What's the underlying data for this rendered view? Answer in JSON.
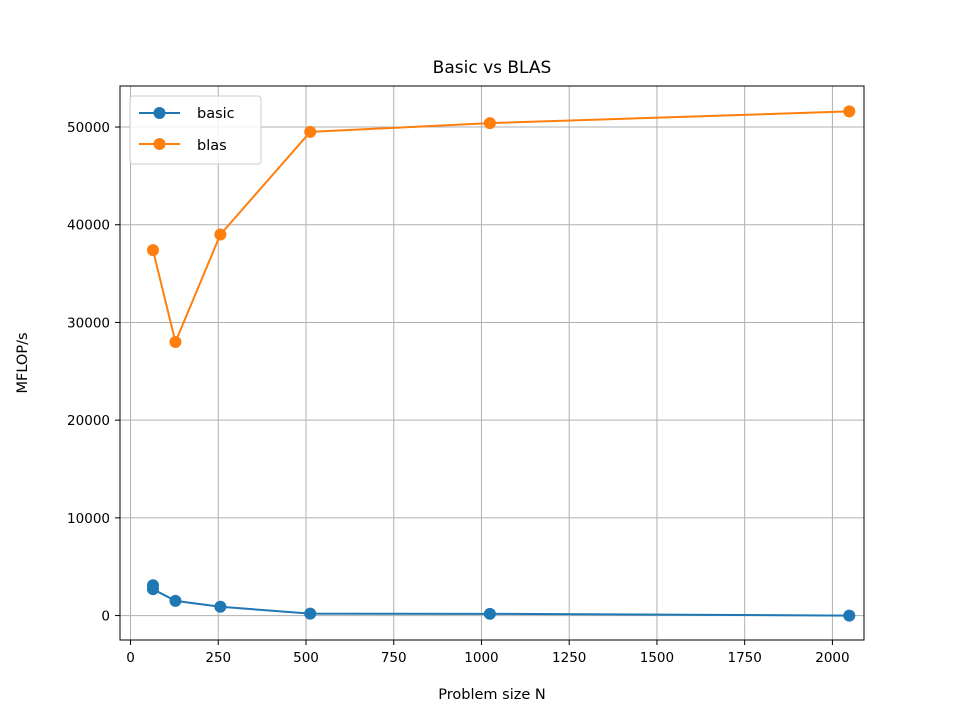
{
  "chart_data": {
    "type": "line",
    "title": "Basic vs BLAS",
    "xlabel": "Problem size N",
    "ylabel": "MFLOP/s",
    "xlim": [
      -30,
      2090
    ],
    "ylim": [
      -2500,
      54200
    ],
    "xticks": [
      0,
      250,
      500,
      750,
      1000,
      1250,
      1500,
      1750,
      2000
    ],
    "yticks": [
      0,
      10000,
      20000,
      30000,
      40000,
      50000
    ],
    "grid": true,
    "legend_position": "top-left",
    "series": [
      {
        "name": "basic",
        "color": "#1f77b4",
        "marker": "circle",
        "points": [
          [
            64,
            3100
          ],
          [
            64,
            2700
          ],
          [
            128,
            1500
          ],
          [
            256,
            900
          ],
          [
            512,
            200
          ],
          [
            1024,
            180
          ],
          [
            2048,
            0
          ]
        ]
      },
      {
        "name": "blas",
        "color": "#ff7f0e",
        "marker": "circle",
        "points": [
          [
            64,
            37400
          ],
          [
            128,
            28000
          ],
          [
            256,
            39000
          ],
          [
            512,
            49500
          ],
          [
            1024,
            50400
          ],
          [
            2048,
            51600
          ]
        ]
      }
    ]
  }
}
